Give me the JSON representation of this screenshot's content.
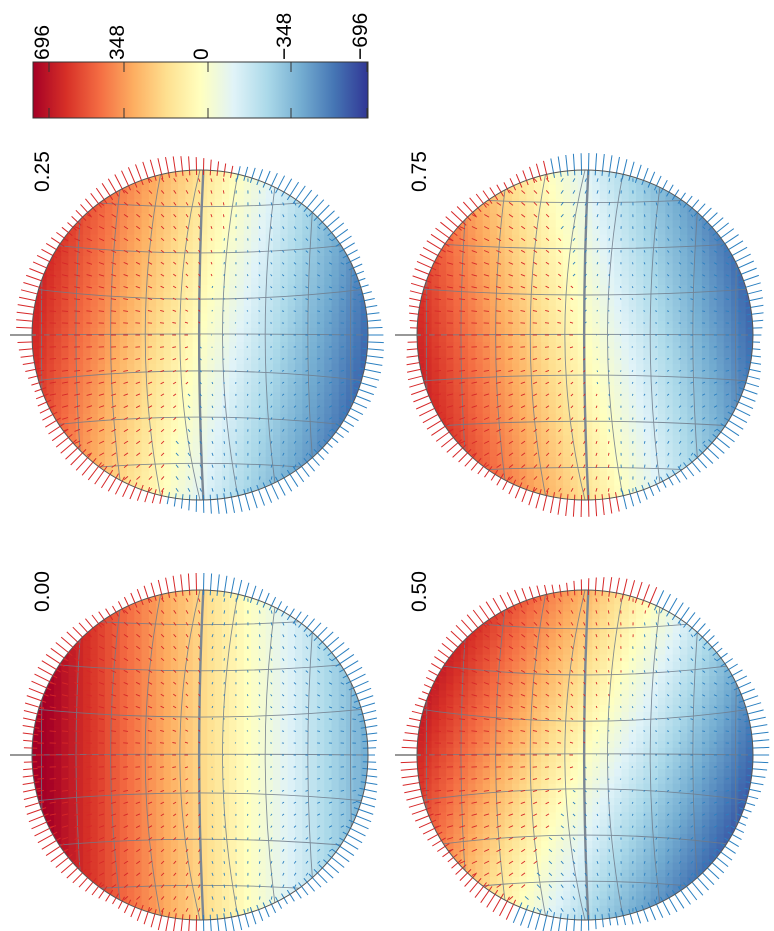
{
  "colorbar": {
    "ticks": [
      "696",
      "348",
      "0",
      "−348",
      "−696"
    ],
    "colors": [
      "#a50026",
      "#d73027",
      "#f46d43",
      "#fdae61",
      "#fee090",
      "#ffffbf",
      "#e0f3f8",
      "#abd9e9",
      "#74add1",
      "#4575b4",
      "#313695"
    ]
  },
  "panels": [
    {
      "phase": "0.00",
      "shift": 0.0
    },
    {
      "phase": "0.25",
      "shift": 0.25
    },
    {
      "phase": "0.50",
      "shift": 0.5
    },
    {
      "phase": "0.75",
      "shift": -0.25
    }
  ],
  "vector_colors": {
    "positive": "#d62728",
    "negative": "#2a7fc0"
  },
  "contour_color": "#6f7b8a"
}
